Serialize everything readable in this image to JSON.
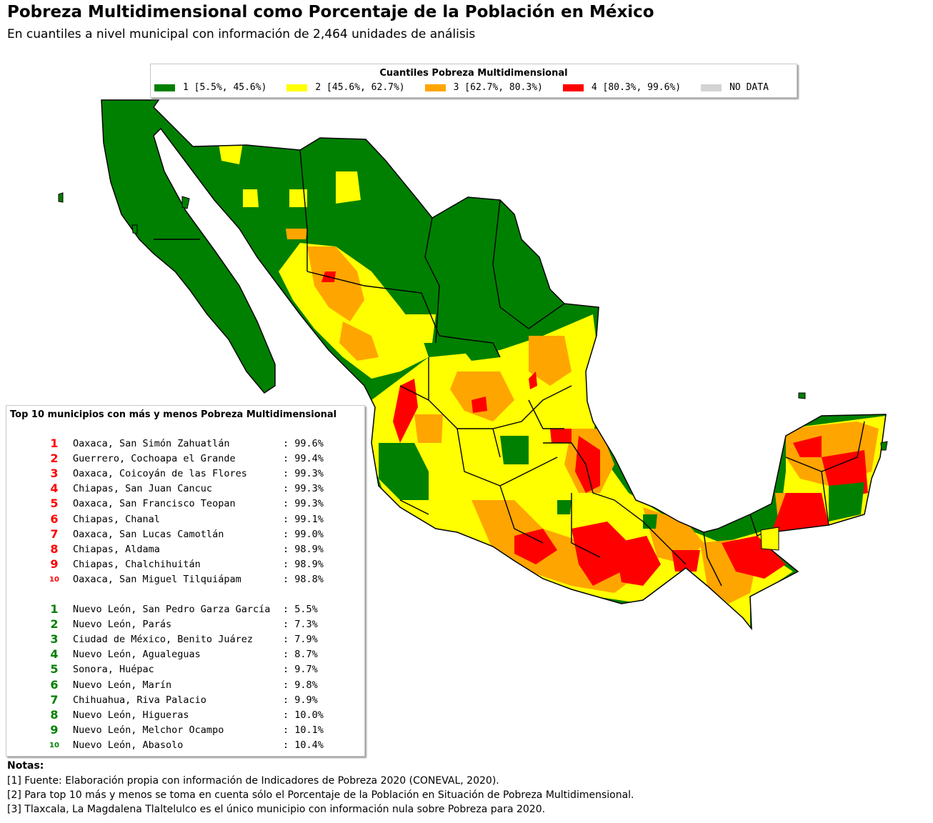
{
  "header": {
    "title": "Pobreza Multidimensional como Porcentaje de la Población en México",
    "subtitle": "En cuantiles a nivel municipal con información de 2,464 unidades de análisis"
  },
  "legend": {
    "title": "Cuantiles Pobreza Multidimensional",
    "items": [
      {
        "label": "1 [5.5%, 45.6%)",
        "color": "#008000"
      },
      {
        "label": "2 [45.6%, 62.7%)",
        "color": "#ffff00"
      },
      {
        "label": "3 [62.7%, 80.3%)",
        "color": "#ffa500"
      },
      {
        "label": "4 [80.3%, 99.6%)",
        "color": "#ff0000"
      },
      {
        "label": "NO DATA",
        "color": "#d3d3d3"
      }
    ]
  },
  "top_box": {
    "title": "Top 10 municipios con más y menos Pobreza Multidimensional",
    "most": [
      {
        "rank": "1",
        "name": "Oaxaca, San Simón Zahuatlán",
        "value": ": 99.6%"
      },
      {
        "rank": "2",
        "name": "Guerrero, Cochoapa el Grande",
        "value": ": 99.4%"
      },
      {
        "rank": "3",
        "name": "Oaxaca, Coicoyán de las Flores",
        "value": ": 99.3%"
      },
      {
        "rank": "4",
        "name": "Chiapas, San Juan Cancuc",
        "value": ": 99.3%"
      },
      {
        "rank": "5",
        "name": "Oaxaca, San Francisco Teopan",
        "value": ": 99.3%"
      },
      {
        "rank": "6",
        "name": "Chiapas, Chanal",
        "value": ": 99.1%"
      },
      {
        "rank": "7",
        "name": "Oaxaca, San Lucas Camotlán",
        "value": ": 99.0%"
      },
      {
        "rank": "8",
        "name": "Chiapas, Aldama",
        "value": ": 98.9%"
      },
      {
        "rank": "9",
        "name": "Chiapas, Chalchihuitán",
        "value": ": 98.9%"
      },
      {
        "rank": "10",
        "name": "Oaxaca, San Miguel Tilquiápam",
        "value": ": 98.8%"
      }
    ],
    "least": [
      {
        "rank": "1",
        "name": "Nuevo León, San Pedro Garza García",
        "value": ": 5.5%"
      },
      {
        "rank": "2",
        "name": "Nuevo León, Parás",
        "value": ": 7.3%"
      },
      {
        "rank": "3",
        "name": "Ciudad de México, Benito Juárez",
        "value": ": 7.9%"
      },
      {
        "rank": "4",
        "name": "Nuevo León, Agualeguas",
        "value": ": 8.7%"
      },
      {
        "rank": "5",
        "name": "Sonora, Huépac",
        "value": ": 9.7%"
      },
      {
        "rank": "6",
        "name": "Nuevo León, Marín",
        "value": ": 9.8%"
      },
      {
        "rank": "7",
        "name": "Chihuahua, Riva Palacio",
        "value": ": 9.9%"
      },
      {
        "rank": "8",
        "name": "Nuevo León, Higueras",
        "value": ": 10.0%"
      },
      {
        "rank": "9",
        "name": "Nuevo León, Melchor Ocampo",
        "value": ": 10.1%"
      },
      {
        "rank": "10",
        "name": "Nuevo León, Abasolo",
        "value": ": 10.4%"
      }
    ]
  },
  "notes": {
    "title": "Notas:",
    "lines": [
      "[1] Fuente: Elaboración propia con información de Indicadores de Pobreza 2020 (CONEVAL, 2020).",
      "[2] Para top 10 más y menos se toma en cuenta sólo el Porcentaje de la Población en Situación de Pobreza Multidimensional.",
      "[3] Tlaxcala, La Magdalena Tlaltelulco es el único municipio con información nula sobre Pobreza para 2020."
    ]
  }
}
